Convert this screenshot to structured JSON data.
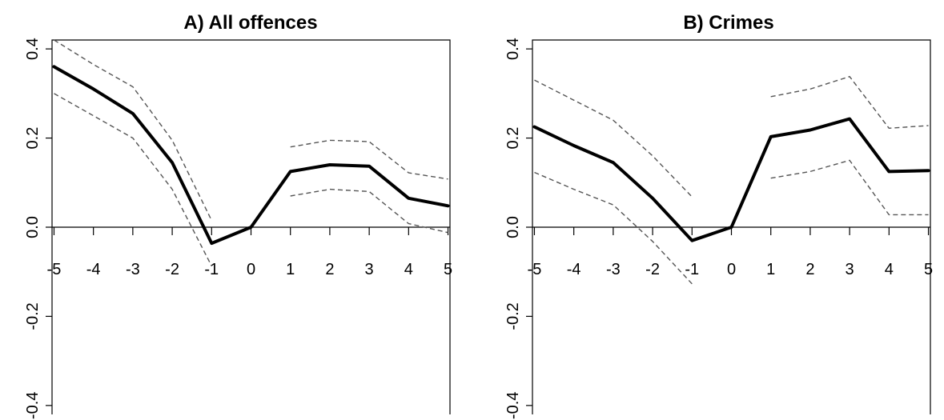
{
  "chart_data": [
    {
      "type": "line",
      "title": "A) All offences",
      "x": [
        -5,
        -4,
        -3,
        -2,
        -1,
        0,
        1,
        2,
        3,
        4,
        5
      ],
      "x_tick_labels": [
        "-5",
        "-4",
        "-3",
        "-2",
        "-1",
        "0",
        "1",
        "2",
        "3",
        "4",
        "5"
      ],
      "y_ticks": [
        -0.4,
        -0.2,
        0.0,
        0.2,
        0.4
      ],
      "y_tick_labels": [
        "-0.4",
        "-0.2",
        "0.0",
        "0.2",
        "0.4"
      ],
      "ylim": [
        -0.42,
        0.42
      ],
      "xlim": [
        -5.05,
        5.05
      ],
      "series": [
        {
          "role": "estimate",
          "style": "solid-thick",
          "values": [
            0.36,
            0.31,
            0.255,
            0.145,
            -0.036,
            0.0,
            0.125,
            0.14,
            0.137,
            0.065,
            0.048
          ]
        },
        {
          "role": "upper-ci",
          "style": "dashed",
          "values": [
            0.42,
            0.365,
            0.315,
            0.195,
            0.015,
            null,
            0.18,
            0.195,
            0.192,
            0.122,
            0.108
          ]
        },
        {
          "role": "lower-ci",
          "style": "dashed",
          "values": [
            0.3,
            0.25,
            0.2,
            0.085,
            -0.087,
            null,
            0.07,
            0.085,
            0.08,
            0.008,
            -0.012
          ]
        }
      ]
    },
    {
      "type": "line",
      "title": "B) Crimes",
      "x": [
        -5,
        -4,
        -3,
        -2,
        -1,
        0,
        1,
        2,
        3,
        4,
        5
      ],
      "x_tick_labels": [
        "-5",
        "-4",
        "-3",
        "-2",
        "-1",
        "0",
        "1",
        "2",
        "3",
        "4",
        "5"
      ],
      "y_ticks": [
        -0.4,
        -0.2,
        0.0,
        0.2,
        0.4
      ],
      "y_tick_labels": [
        "-0.4",
        "-0.2",
        "0.0",
        "0.2",
        "0.4"
      ],
      "ylim": [
        -0.42,
        0.42
      ],
      "xlim": [
        -5.05,
        5.05
      ],
      "series": [
        {
          "role": "estimate",
          "style": "solid-thick",
          "values": [
            0.225,
            0.183,
            0.145,
            0.065,
            -0.03,
            0.0,
            0.203,
            0.218,
            0.243,
            0.125,
            0.127
          ]
        },
        {
          "role": "upper-ci",
          "style": "dashed",
          "values": [
            0.33,
            0.285,
            0.24,
            0.16,
            0.068,
            null,
            0.293,
            0.31,
            0.338,
            0.222,
            0.228
          ]
        },
        {
          "role": "lower-ci",
          "style": "dashed",
          "values": [
            0.123,
            0.085,
            0.05,
            -0.032,
            -0.127,
            null,
            0.11,
            0.125,
            0.15,
            0.028,
            0.028
          ]
        }
      ]
    }
  ]
}
